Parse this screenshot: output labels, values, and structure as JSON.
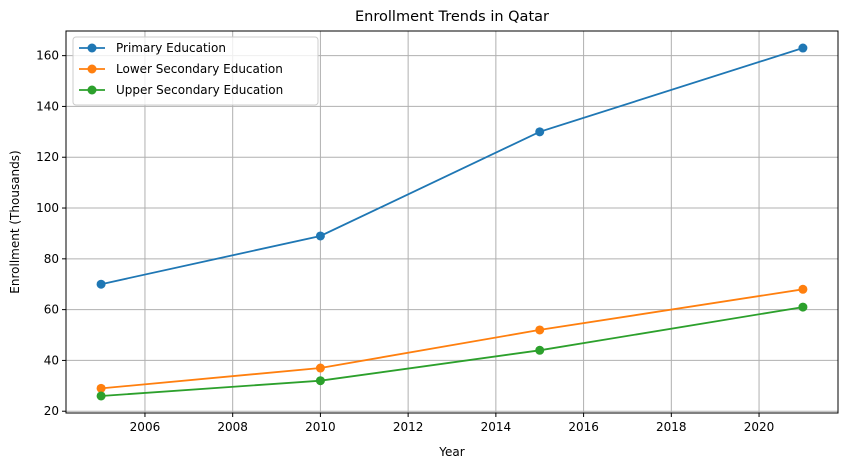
{
  "chart_data": {
    "type": "line",
    "title": "Enrollment Trends in Qatar",
    "xlabel": "Year",
    "ylabel": "Enrollment (Thousands)",
    "x": [
      2005,
      2010,
      2015,
      2021
    ],
    "xlim": [
      2004.2,
      2021.8
    ],
    "ylim": [
      19.3,
      169.7
    ],
    "xticks": [
      2006,
      2008,
      2010,
      2012,
      2014,
      2016,
      2018,
      2020
    ],
    "yticks": [
      20,
      40,
      60,
      80,
      100,
      120,
      140,
      160
    ],
    "grid": true,
    "legend_position": "top-left",
    "series": [
      {
        "name": "Primary Education",
        "color": "#1f77b4",
        "values": [
          70,
          89,
          130,
          163
        ]
      },
      {
        "name": "Lower Secondary Education",
        "color": "#ff7f0e",
        "values": [
          29,
          37,
          52,
          68
        ]
      },
      {
        "name": "Upper Secondary Education",
        "color": "#2ca02c",
        "values": [
          26,
          32,
          44,
          61
        ]
      }
    ]
  }
}
